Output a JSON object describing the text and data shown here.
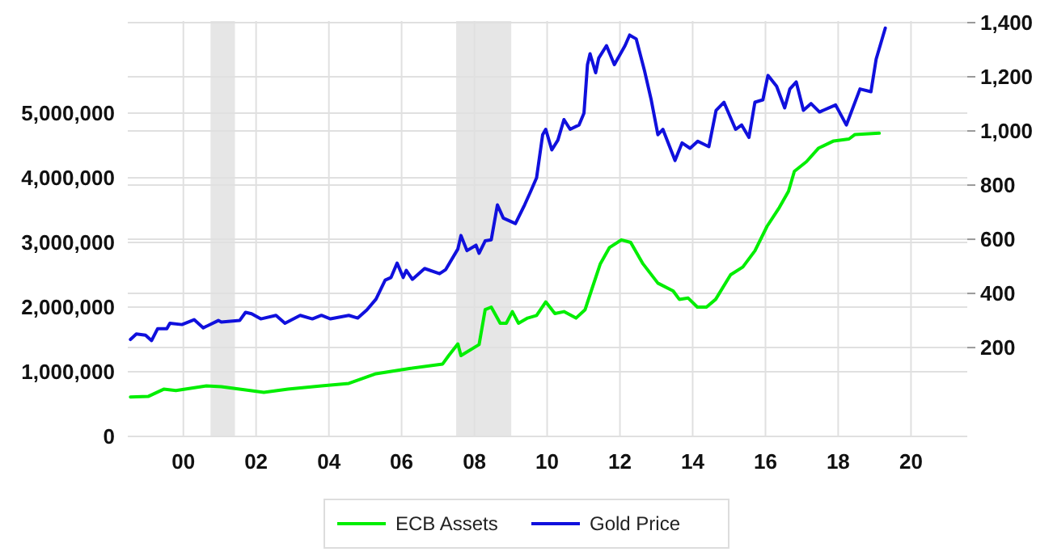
{
  "chart_data": {
    "type": "line",
    "ylim": [
      0,
      6425000
    ],
    "yticks": [
      {
        "value": 0,
        "label": "0"
      },
      {
        "value": 1000000,
        "label": "1,000,000"
      },
      {
        "value": 2000000,
        "label": "2,000,000"
      },
      {
        "value": 3000000,
        "label": "3,000,000"
      },
      {
        "value": 4000000,
        "label": "4,000,000"
      },
      {
        "value": 5000000,
        "label": "5,000,000"
      }
    ],
    "y2lim": [
      -128,
      1406
    ],
    "y2ticks": [
      200,
      400,
      600,
      800,
      {
        "value": 1000,
        "label": "1,000"
      },
      {
        "value": 1200,
        "label": "1,200"
      },
      {
        "value": 1400,
        "label": "1,400"
      }
    ],
    "xlim": [
      "1998-12-05",
      "2022-01-01"
    ],
    "xticks": [
      {
        "value": "2000-06-15",
        "label": "00"
      },
      {
        "value": "2002-06-15",
        "label": "02"
      },
      {
        "value": "2004-06-15",
        "label": "04"
      },
      {
        "value": "2006-06-15",
        "label": "06"
      },
      {
        "value": "2008-06-15",
        "label": "08"
      },
      {
        "value": "2010-06-15",
        "label": "10"
      },
      {
        "value": "2012-06-15",
        "label": "12"
      },
      {
        "value": "2014-06-15",
        "label": "14"
      },
      {
        "value": "2016-06-15",
        "label": "16"
      },
      {
        "value": "2018-06-15",
        "label": "18"
      },
      {
        "value": "2020-06-15",
        "label": "20"
      }
    ],
    "grid": true,
    "legend": "bottom",
    "line_style": "solid",
    "marker": "none",
    "bands": [
      {
        "axis": "x",
        "from": "2001-03-15",
        "to": "2001-11-15",
        "color": "#e6e6e6"
      },
      {
        "axis": "x",
        "from": "2007-12-15",
        "to": "2009-06-20",
        "color": "#e6e6e6"
      }
    ],
    "series": [
      {
        "name": "ECB Assets",
        "color": "#00ee00",
        "x": [
          "1999-01",
          "1999-07",
          "1999-12",
          "2000-04",
          "2001-02",
          "2001-07",
          "2001-10",
          "2002-09",
          "2003-05",
          "2004-04",
          "2005-01",
          "2005-10",
          "2006-09",
          "2007-08",
          "2007-10",
          "2008-01",
          "2008-02",
          "2008-08",
          "2008-10",
          "2008-12",
          "2009-03",
          "2009-05",
          "2009-07",
          "2009-09",
          "2009-12",
          "2010-03",
          "2010-06",
          "2010-09",
          "2010-12",
          "2011-04",
          "2011-07",
          "2011-09",
          "2011-12",
          "2012-03",
          "2012-07",
          "2012-10",
          "2013-02",
          "2013-07",
          "2013-12",
          "2014-02",
          "2014-05",
          "2014-08",
          "2014-11",
          "2015-02",
          "2015-07",
          "2015-11",
          "2016-03",
          "2016-07",
          "2016-11",
          "2017-02",
          "2017-04",
          "2017-08",
          "2017-12",
          "2018-05",
          "2018-10",
          "2018-12",
          "2019-08"
        ],
        "values": [
          610000,
          620000,
          730000,
          710000,
          780000,
          770000,
          750000,
          680000,
          730000,
          780000,
          820000,
          970000,
          1050000,
          1120000,
          1250000,
          1430000,
          1250000,
          1420000,
          1960000,
          2000000,
          1750000,
          1750000,
          1930000,
          1750000,
          1830000,
          1870000,
          2080000,
          1900000,
          1930000,
          1830000,
          1960000,
          2250000,
          2670000,
          2920000,
          3040000,
          3000000,
          2670000,
          2370000,
          2250000,
          2120000,
          2140000,
          2000000,
          2000000,
          2120000,
          2500000,
          2620000,
          2870000,
          3250000,
          3540000,
          3790000,
          4100000,
          4250000,
          4460000,
          4570000,
          4600000,
          4670000,
          4690000
        ]
      },
      {
        "name": "Gold Price",
        "color": "#1010dd",
        "axis": "y2",
        "x": [
          "1999-01",
          "1999-03",
          "1999-06",
          "1999-08",
          "1999-10",
          "2000-01",
          "2000-02",
          "2000-06",
          "2000-10",
          "2001-01",
          "2001-06",
          "2001-07",
          "2002-01",
          "2002-03",
          "2002-05",
          "2002-08",
          "2003-01",
          "2003-04",
          "2003-09",
          "2004-01",
          "2004-04",
          "2004-07",
          "2005-01",
          "2005-04",
          "2005-07",
          "2005-10",
          "2006-01",
          "2006-03",
          "2006-05",
          "2006-07",
          "2006-08",
          "2006-10",
          "2007-02",
          "2007-07",
          "2007-09",
          "2008-01",
          "2008-02",
          "2008-04",
          "2008-07",
          "2008-08",
          "2008-10",
          "2008-12",
          "2009-02",
          "2009-04",
          "2009-08",
          "2009-11",
          "2010-01",
          "2010-03",
          "2010-05",
          "2010-06",
          "2010-08",
          "2010-10",
          "2010-12",
          "2011-02",
          "2011-05",
          "2011-06-20",
          "2011-07-25",
          "2011-08-20",
          "2011-10-15",
          "2011-11-15",
          "2012-02-01",
          "2012-04-20",
          "2012-08-05",
          "2012-09-20",
          "2012-11-25",
          "2013-02-15",
          "2013-04-25",
          "2013-07-01",
          "2013-08-20",
          "2013-12-20",
          "2014-03-01",
          "2014-05-20",
          "2014-08-05",
          "2014-11-25",
          "2015-02-05",
          "2015-04-25",
          "2015-08-20",
          "2015-10-20",
          "2016-01-01",
          "2016-03-01",
          "2016-05-20",
          "2016-07-10",
          "2016-10-05",
          "2016-12-25",
          "2017-02-15",
          "2017-04-20",
          "2017-07-01",
          "2017-09-15",
          "2017-12-10",
          "2018-05-20",
          "2018-09-05",
          "2019-01-20",
          "2019-05-10",
          "2019-07-01",
          "2019-10-01"
        ],
        "values": [
          230,
          250,
          246,
          226,
          270,
          270,
          290,
          285,
          303,
          273,
          300,
          294,
          300,
          330,
          325,
          306,
          319,
          290,
          319,
          306,
          319,
          306,
          319,
          309,
          339,
          379,
          449,
          459,
          512,
          459,
          485,
          452,
          492,
          473,
          488,
          564,
          614,
          558,
          578,
          548,
          594,
          598,
          727,
          678,
          658,
          727,
          777,
          827,
          986,
          1006,
          930,
          966,
          1042,
          1006,
          1022,
          1066,
          1245,
          1285,
          1215,
          1269,
          1315,
          1245,
          1315,
          1354,
          1340,
          1225,
          1115,
          986,
          1006,
          891,
          956,
          936,
          962,
          942,
          1076,
          1106,
          1006,
          1022,
          976,
          1106,
          1115,
          1205,
          1165,
          1085,
          1155,
          1181,
          1076,
          1101,
          1070,
          1096,
          1022,
          1155,
          1145,
          1265,
          1380
        ]
      }
    ]
  }
}
